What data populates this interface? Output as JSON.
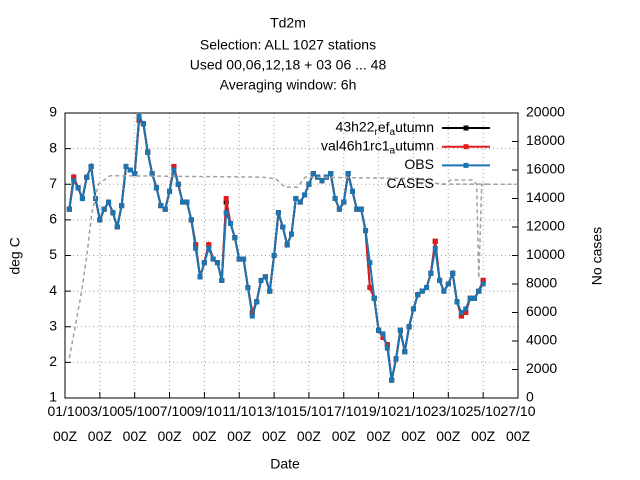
{
  "chart_data": {
    "type": "line",
    "title": "Td2m",
    "subtitle": [
      "Selection: ALL   1027 stations",
      "Used  00,06,12,18  + 03 06 ... 48",
      "Averaging window:  6h"
    ],
    "xlabel": "Date",
    "ylabel": "deg C",
    "y2label": "No cases",
    "xlim": [
      0,
      624
    ],
    "xticks": [
      {
        "value": 0,
        "label": "01/10 00Z"
      },
      {
        "value": 48,
        "label": "03/10 00Z"
      },
      {
        "value": 96,
        "label": "05/10 00Z"
      },
      {
        "value": 144,
        "label": "07/10 00Z"
      },
      {
        "value": 192,
        "label": "09/10 00Z"
      },
      {
        "value": 240,
        "label": "11/10 00Z"
      },
      {
        "value": 288,
        "label": "13/10 00Z"
      },
      {
        "value": 336,
        "label": "15/10 00Z"
      },
      {
        "value": 384,
        "label": "17/10 00Z"
      },
      {
        "value": 432,
        "label": "19/10 00Z"
      },
      {
        "value": 480,
        "label": "21/10 00Z"
      },
      {
        "value": 528,
        "label": "23/10 00Z"
      },
      {
        "value": 576,
        "label": "25/10 00Z"
      },
      {
        "value": 624,
        "label": "27/10 00Z"
      }
    ],
    "ylim": [
      1,
      9
    ],
    "yticks": [
      1,
      2,
      3,
      4,
      5,
      6,
      7,
      8,
      9
    ],
    "y2lim": [
      0,
      20000
    ],
    "y2ticks": [
      0,
      2000,
      4000,
      6000,
      8000,
      10000,
      12000,
      14000,
      16000,
      18000,
      20000
    ],
    "grid": true,
    "legend": "top-right",
    "x": [
      6,
      12,
      18,
      24,
      30,
      36,
      42,
      48,
      54,
      60,
      66,
      72,
      78,
      84,
      90,
      96,
      102,
      108,
      114,
      120,
      126,
      132,
      138,
      144,
      150,
      156,
      162,
      168,
      174,
      180,
      186,
      192,
      198,
      204,
      210,
      216,
      222,
      228,
      234,
      240,
      246,
      252,
      258,
      264,
      270,
      276,
      282,
      288,
      294,
      300,
      306,
      312,
      318,
      324,
      330,
      336,
      342,
      348,
      354,
      360,
      366,
      372,
      378,
      384,
      390,
      396,
      402,
      408,
      414,
      420,
      426,
      432,
      438,
      444,
      450,
      456,
      462,
      468,
      474,
      480,
      486,
      492,
      498,
      504,
      510,
      516,
      522,
      528,
      534,
      540,
      546,
      552,
      558,
      564,
      570,
      576
    ],
    "series": [
      {
        "name": "43h22_ref_autumn",
        "color": "#000000",
        "values": [
          6.3,
          7.2,
          6.9,
          6.6,
          7.2,
          7.5,
          6.6,
          6.0,
          6.3,
          6.5,
          6.2,
          5.8,
          6.4,
          7.5,
          7.4,
          7.3,
          8.8,
          8.7,
          7.9,
          7.3,
          6.9,
          6.4,
          6.3,
          6.8,
          7.5,
          7.0,
          6.5,
          6.5,
          6.0,
          5.3,
          4.4,
          4.8,
          5.3,
          4.9,
          4.8,
          4.3,
          6.5,
          5.9,
          5.5,
          4.9,
          4.9,
          4.1,
          3.4,
          3.7,
          4.3,
          4.4,
          4.0,
          5.0,
          6.2,
          5.8,
          5.3,
          5.6,
          6.6,
          6.5,
          6.7,
          7.0,
          7.3,
          7.2,
          7.1,
          7.2,
          7.3,
          6.6,
          6.3,
          6.5,
          7.3,
          6.8,
          6.3,
          6.3,
          5.7,
          4.1,
          3.8,
          2.9,
          2.7,
          2.5,
          1.5,
          2.1,
          2.9,
          2.3,
          3.0,
          3.5,
          3.9,
          4.0,
          4.1,
          4.5,
          5.4,
          4.3,
          4.0,
          4.2,
          4.5,
          3.7,
          3.3,
          3.4,
          3.8,
          3.8,
          4.0,
          4.3
        ]
      },
      {
        "name": "val46h1rc1_autumn",
        "color": "#e41a1c",
        "values": [
          6.3,
          7.2,
          6.9,
          6.6,
          7.2,
          7.5,
          6.6,
          6.0,
          6.3,
          6.5,
          6.2,
          5.8,
          6.4,
          7.5,
          7.4,
          7.3,
          8.8,
          8.7,
          7.9,
          7.3,
          6.9,
          6.4,
          6.3,
          6.8,
          7.5,
          7.0,
          6.5,
          6.5,
          6.0,
          5.3,
          4.4,
          4.8,
          5.3,
          4.9,
          4.8,
          4.3,
          6.6,
          5.9,
          5.5,
          4.9,
          4.9,
          4.1,
          3.4,
          3.7,
          4.3,
          4.4,
          4.0,
          5.0,
          6.2,
          5.8,
          5.3,
          5.6,
          6.6,
          6.5,
          6.7,
          7.0,
          7.3,
          7.2,
          7.1,
          7.2,
          7.3,
          6.6,
          6.3,
          6.5,
          7.3,
          6.8,
          6.3,
          6.3,
          5.7,
          4.1,
          3.8,
          2.9,
          2.7,
          2.5,
          1.5,
          2.1,
          2.9,
          2.3,
          3.0,
          3.5,
          3.9,
          4.0,
          4.1,
          4.5,
          5.4,
          4.3,
          4.0,
          4.2,
          4.5,
          3.7,
          3.3,
          3.4,
          3.8,
          3.8,
          4.0,
          4.3
        ]
      },
      {
        "name": "OBS",
        "color": "#1a75b0",
        "values": [
          6.3,
          7.1,
          6.9,
          6.6,
          7.2,
          7.5,
          6.6,
          6.0,
          6.3,
          6.5,
          6.2,
          5.8,
          6.4,
          7.5,
          7.4,
          7.3,
          8.9,
          8.7,
          7.9,
          7.3,
          6.9,
          6.4,
          6.3,
          6.8,
          7.4,
          7.0,
          6.5,
          6.5,
          6.0,
          5.2,
          4.4,
          4.8,
          5.2,
          4.9,
          4.8,
          4.3,
          6.2,
          5.9,
          5.5,
          4.9,
          4.9,
          4.1,
          3.3,
          3.7,
          4.3,
          4.4,
          4.0,
          5.0,
          6.2,
          5.8,
          5.3,
          5.6,
          6.6,
          6.5,
          6.7,
          7.0,
          7.3,
          7.2,
          7.1,
          7.2,
          7.3,
          6.6,
          6.3,
          6.5,
          7.3,
          6.8,
          6.3,
          6.3,
          5.7,
          4.8,
          3.8,
          2.9,
          2.8,
          2.4,
          1.5,
          2.1,
          2.9,
          2.3,
          3.0,
          3.5,
          3.9,
          4.0,
          4.1,
          4.5,
          5.2,
          4.3,
          4.0,
          4.2,
          4.5,
          3.7,
          3.4,
          3.5,
          3.8,
          3.8,
          4.0,
          4.2
        ]
      },
      {
        "name": "CASES",
        "color": "#a0a0a0",
        "axis": "y2",
        "x": [
          6,
          14,
          23,
          30,
          37,
          46,
          62,
          269,
          290,
          303,
          320,
          331,
          490,
          503,
          524,
          531,
          561,
          567,
          570,
          574,
          624
        ],
        "values": [
          2800,
          5000,
          7500,
          10000,
          13000,
          15000,
          15600,
          15500,
          15400,
          14800,
          14800,
          15500,
          15400,
          15100,
          15000,
          15300,
          15300,
          15000,
          8400,
          15000,
          15000
        ]
      }
    ]
  }
}
